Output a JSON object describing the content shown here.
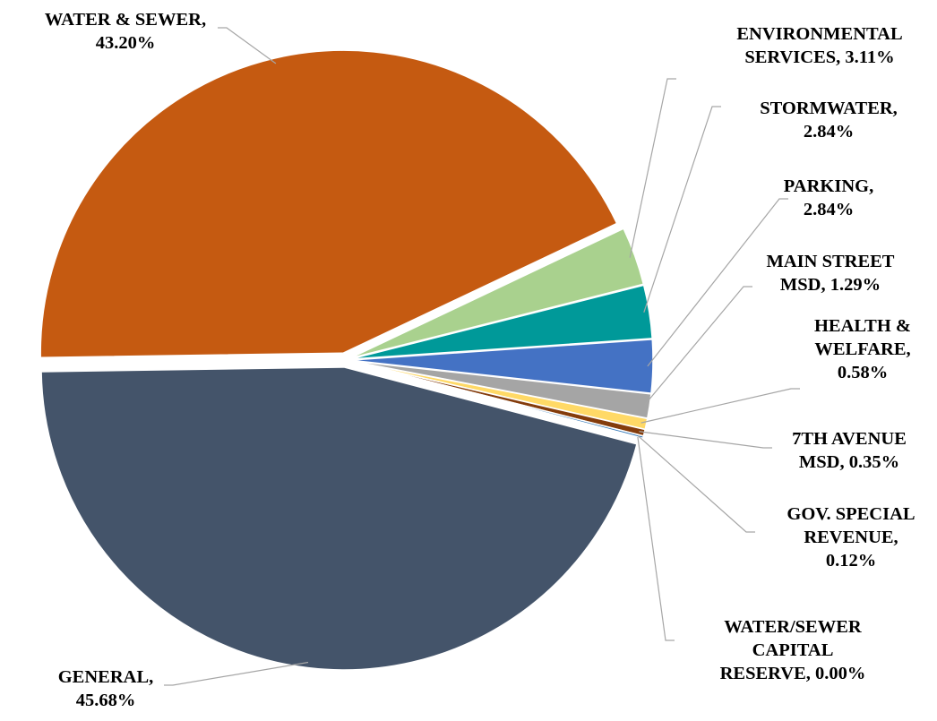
{
  "chart_data": {
    "type": "pie",
    "title": "",
    "exploded": true,
    "slices": [
      {
        "category": "GENERAL",
        "value": 45.68,
        "label_lines": [
          "GENERAL,",
          "45.68%"
        ],
        "color": "#44546a"
      },
      {
        "category": "WATER & SEWER",
        "value": 43.2,
        "label_lines": [
          "WATER & SEWER,",
          "43.20%"
        ],
        "color": "#c55a11"
      },
      {
        "category": "ENVIRONMENTAL SERVICES",
        "value": 3.11,
        "label_lines": [
          "ENVIRONMENTAL",
          "SERVICES, 3.11%"
        ],
        "color": "#a9d18e"
      },
      {
        "category": "STORMWATER",
        "value": 2.84,
        "label_lines": [
          "STORMWATER,",
          "2.84%"
        ],
        "color": "#009999"
      },
      {
        "category": "PARKING",
        "value": 2.84,
        "label_lines": [
          "PARKING,",
          "2.84%"
        ],
        "color": "#4472c4"
      },
      {
        "category": "MAIN STREET MSD",
        "value": 1.29,
        "label_lines": [
          "MAIN STREET",
          "MSD, 1.29%"
        ],
        "color": "#a5a5a5"
      },
      {
        "category": "HEALTH & WELFARE",
        "value": 0.58,
        "label_lines": [
          "HEALTH &",
          "WELFARE,",
          "0.58%"
        ],
        "color": "#ffd966"
      },
      {
        "category": "7TH AVENUE MSD",
        "value": 0.35,
        "label_lines": [
          "7TH AVENUE",
          "MSD, 0.35%"
        ],
        "color": "#843c0c"
      },
      {
        "category": "GOV. SPECIAL REVENUE",
        "value": 0.12,
        "label_lines": [
          "GOV. SPECIAL",
          "REVENUE,",
          "0.12%"
        ],
        "color": "#2e75b6"
      },
      {
        "category": "WATER/SEWER CAPITAL RESERVE",
        "value": 0.0,
        "label_lines": [
          "WATER/SEWER",
          "CAPITAL",
          "RESERVE, 0.00%"
        ],
        "color": "#70ad47"
      }
    ]
  }
}
